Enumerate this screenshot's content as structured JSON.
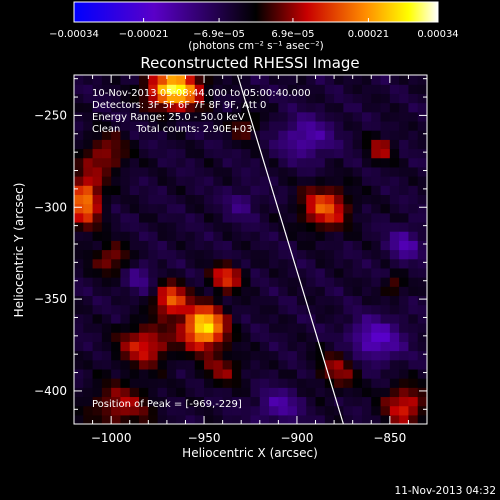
{
  "colorbar": {
    "tick_labels": [
      "−0.00034",
      "−0.00021",
      "−6.9e−05",
      "6.9e−05",
      "0.00021",
      "0.00034"
    ],
    "tick_values": [
      -0.00034,
      -0.00021,
      -6.9e-05,
      6.9e-05,
      0.00021,
      0.00034
    ],
    "range": [
      -0.00034,
      0.00034
    ],
    "unit_text": "(photons cm⁻² s⁻¹ asec⁻²)",
    "colors": [
      "#0000ff",
      "#5a00c8",
      "#000000",
      "#c80000",
      "#ff8c00",
      "#ffff00",
      "#ffffff"
    ]
  },
  "chart_data": {
    "type": "heatmap",
    "title": "Reconstructed RHESSI Image",
    "xlabel": "Heliocentric X (arcsec)",
    "ylabel": "Heliocentric Y (arcsec)",
    "xlim": [
      -1020,
      -830
    ],
    "ylim": [
      -418,
      -228
    ],
    "x_ticks": [
      -1000,
      -950,
      -900,
      -850
    ],
    "y_ticks": [
      -250,
      -300,
      -350,
      -400
    ],
    "x_tick_labels": [
      "−1000",
      "−950",
      "−900",
      "−850"
    ],
    "y_tick_labels": [
      "−250",
      "−300",
      "−350",
      "−400"
    ],
    "annotations": [
      "10-Nov-2013 05:08:44.000 to 05:00:40.000",
      "Detectors: 3F 5F 6F 7F 8F 9F, Att 0",
      "Energy Range: 25.0 - 50.0 keV",
      "Clean     Total counts: 2.90E+03",
      "Position of Peak = [-969,-229]"
    ],
    "peak_position": [
      -969,
      -229
    ],
    "sources": [
      {
        "x": -966,
        "y": -236,
        "sx": 10,
        "sy": 7,
        "value": 0.00034
      },
      {
        "x": -1014,
        "y": -296,
        "sx": 6,
        "sy": 10,
        "value": 0.00024
      },
      {
        "x": -1003,
        "y": -271,
        "sx": 8,
        "sy": 8,
        "value": 0.00012
      },
      {
        "x": -950,
        "y": -365,
        "sx": 8,
        "sy": 8,
        "value": 0.00033
      },
      {
        "x": -968,
        "y": -350,
        "sx": 6,
        "sy": 6,
        "value": 0.00022
      },
      {
        "x": -982,
        "y": -375,
        "sx": 10,
        "sy": 8,
        "value": 0.00016
      },
      {
        "x": -938,
        "y": -338,
        "sx": 6,
        "sy": 5,
        "value": 0.00018
      },
      {
        "x": -995,
        "y": -408,
        "sx": 12,
        "sy": 9,
        "value": 0.00012
      },
      {
        "x": -885,
        "y": -300,
        "sx": 9,
        "sy": 8,
        "value": 0.0002
      },
      {
        "x": -855,
        "y": -268,
        "sx": 5,
        "sy": 5,
        "value": 0.00013
      },
      {
        "x": -842,
        "y": -408,
        "sx": 8,
        "sy": 8,
        "value": 0.00016
      },
      {
        "x": -878,
        "y": -388,
        "sx": 8,
        "sy": 8,
        "value": 0.00011
      },
      {
        "x": -1000,
        "y": -328,
        "sx": 7,
        "sy": 6,
        "value": 0.00012
      },
      {
        "x": -940,
        "y": -388,
        "sx": 8,
        "sy": 6,
        "value": 0.0001
      },
      {
        "x": -928,
        "y": -255,
        "sx": 6,
        "sy": 6,
        "value": 9e-05
      },
      {
        "x": -848,
        "y": -343,
        "sx": 4,
        "sy": 4,
        "value": 0.0001
      },
      {
        "x": -895,
        "y": -262,
        "sx": 10,
        "sy": 8,
        "value": -0.00012
      },
      {
        "x": -858,
        "y": -372,
        "sx": 10,
        "sy": 8,
        "value": -0.00015
      },
      {
        "x": -910,
        "y": -408,
        "sx": 8,
        "sy": 6,
        "value": -0.00011
      },
      {
        "x": -985,
        "y": -338,
        "sx": 6,
        "sy": 6,
        "value": -8e-05
      },
      {
        "x": -842,
        "y": -320,
        "sx": 6,
        "sy": 6,
        "value": -0.00012
      },
      {
        "x": -930,
        "y": -298,
        "sx": 6,
        "sy": 6,
        "value": -7e-05
      }
    ],
    "limb_line": [
      [
        -932,
        -228
      ],
      [
        -875,
        -418
      ]
    ]
  },
  "timestamp": "11-Nov-2013 04:32"
}
